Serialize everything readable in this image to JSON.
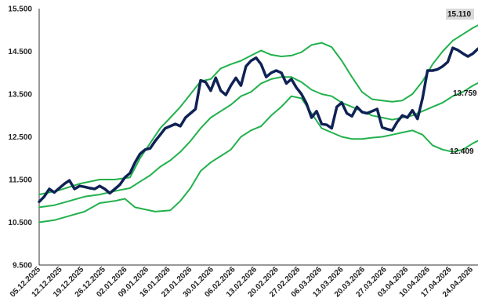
{
  "chart_data": {
    "type": "line",
    "title": "",
    "xlabel": "",
    "ylabel": "",
    "ylim": [
      9500,
      15500
    ],
    "y_ticks": [
      9500,
      10500,
      11500,
      12500,
      13500,
      14500,
      15500
    ],
    "y_tick_labels": [
      "9.500",
      "10.500",
      "11.500",
      "12.500",
      "13.500",
      "14.500",
      "15.500"
    ],
    "x_tick_labels": [
      "05.12.2025",
      "12.12.2025",
      "19.12.2025",
      "26.12.2025",
      "02.01.2026",
      "09.01.2026",
      "16.01.2026",
      "23.01.2026",
      "30.01.2026",
      "06.02.2026",
      "13.02.2026",
      "20.02.2026",
      "27.02.2026",
      "06.03.2026",
      "13.03.2026",
      "20.03.2026",
      "27.03.2026",
      "03.04.2026",
      "10.04.2026",
      "17.04.2026",
      "24.04.2026"
    ],
    "grid": false,
    "legend": "none",
    "end_labels": [
      {
        "text": "15.110",
        "value": 15110,
        "series": "upper_band"
      },
      {
        "text": "13.759",
        "value": 13759,
        "series": "middle_band"
      },
      {
        "text": "12.409",
        "value": 12409,
        "series": "lower_band"
      }
    ],
    "colors": {
      "price": "#0f2255",
      "bands": "#22b14c",
      "label_bg": "#d9d9d9"
    },
    "series": [
      {
        "key": "price",
        "color": "#0f2255",
        "width": 3.5,
        "values": [
          [
            0,
            10980
          ],
          [
            1,
            11100
          ],
          [
            2,
            11280
          ],
          [
            3,
            11200
          ],
          [
            4,
            11300
          ],
          [
            5,
            11400
          ],
          [
            6,
            11480
          ],
          [
            7,
            11280
          ],
          [
            8,
            11350
          ],
          [
            9,
            11330
          ],
          [
            10,
            11300
          ],
          [
            11,
            11280
          ],
          [
            12,
            11350
          ],
          [
            13,
            11280
          ],
          [
            14,
            11180
          ],
          [
            15,
            11280
          ],
          [
            16,
            11380
          ],
          [
            17,
            11550
          ],
          [
            18,
            11650
          ],
          [
            19,
            11900
          ],
          [
            20,
            12100
          ],
          [
            21,
            12200
          ],
          [
            22,
            12230
          ],
          [
            23,
            12400
          ],
          [
            24,
            12550
          ],
          [
            25,
            12700
          ],
          [
            26,
            12750
          ],
          [
            27,
            12800
          ],
          [
            28,
            12750
          ],
          [
            29,
            12950
          ],
          [
            30,
            13050
          ],
          [
            31,
            13150
          ],
          [
            32,
            13820
          ],
          [
            33,
            13780
          ],
          [
            34,
            13580
          ],
          [
            35,
            13880
          ],
          [
            36,
            13580
          ],
          [
            37,
            13480
          ],
          [
            38,
            13700
          ],
          [
            39,
            13880
          ],
          [
            40,
            13700
          ],
          [
            41,
            14150
          ],
          [
            42,
            14280
          ],
          [
            43,
            14350
          ],
          [
            44,
            14200
          ],
          [
            45,
            13900
          ],
          [
            46,
            14000
          ],
          [
            47,
            14050
          ],
          [
            48,
            14000
          ],
          [
            49,
            13750
          ],
          [
            50,
            13850
          ],
          [
            51,
            13650
          ],
          [
            52,
            13500
          ],
          [
            53,
            13280
          ],
          [
            54,
            12950
          ],
          [
            55,
            13100
          ],
          [
            56,
            12800
          ],
          [
            57,
            12780
          ],
          [
            58,
            12700
          ],
          [
            59,
            13200
          ],
          [
            60,
            13300
          ],
          [
            61,
            13050
          ],
          [
            62,
            12980
          ],
          [
            63,
            13200
          ],
          [
            64,
            13080
          ],
          [
            65,
            13050
          ],
          [
            66,
            13100
          ],
          [
            67,
            13150
          ],
          [
            68,
            12720
          ],
          [
            69,
            12680
          ],
          [
            70,
            12650
          ],
          [
            71,
            12850
          ],
          [
            72,
            13000
          ],
          [
            73,
            12950
          ],
          [
            74,
            13120
          ],
          [
            75,
            12920
          ],
          [
            76,
            13400
          ],
          [
            77,
            14050
          ],
          [
            78,
            14050
          ],
          [
            79,
            14080
          ],
          [
            80,
            14150
          ],
          [
            81,
            14250
          ],
          [
            82,
            14580
          ],
          [
            83,
            14530
          ],
          [
            84,
            14450
          ],
          [
            85,
            14380
          ],
          [
            86,
            14450
          ],
          [
            87,
            14560
          ]
        ]
      },
      {
        "key": "upper_band",
        "color": "#22b14c",
        "width": 2,
        "values": [
          [
            0,
            11150
          ],
          [
            4,
            11250
          ],
          [
            8,
            11400
          ],
          [
            12,
            11500
          ],
          [
            15,
            11500
          ],
          [
            18,
            11550
          ],
          [
            20,
            12000
          ],
          [
            22,
            12350
          ],
          [
            24,
            12700
          ],
          [
            26,
            12950
          ],
          [
            28,
            13200
          ],
          [
            30,
            13500
          ],
          [
            32,
            13800
          ],
          [
            34,
            13850
          ],
          [
            36,
            14100
          ],
          [
            38,
            14200
          ],
          [
            40,
            14280
          ],
          [
            42,
            14400
          ],
          [
            44,
            14520
          ],
          [
            46,
            14420
          ],
          [
            48,
            14380
          ],
          [
            50,
            14400
          ],
          [
            52,
            14480
          ],
          [
            54,
            14650
          ],
          [
            56,
            14700
          ],
          [
            58,
            14600
          ],
          [
            60,
            14280
          ],
          [
            62,
            13900
          ],
          [
            64,
            13550
          ],
          [
            66,
            13380
          ],
          [
            68,
            13350
          ],
          [
            70,
            13320
          ],
          [
            72,
            13350
          ],
          [
            74,
            13500
          ],
          [
            76,
            13800
          ],
          [
            78,
            14200
          ],
          [
            80,
            14500
          ],
          [
            82,
            14750
          ],
          [
            84,
            14900
          ],
          [
            86,
            15050
          ],
          [
            87,
            15110
          ]
        ]
      },
      {
        "key": "middle_band",
        "color": "#22b14c",
        "width": 2,
        "values": [
          [
            0,
            10850
          ],
          [
            3,
            10900
          ],
          [
            6,
            11000
          ],
          [
            9,
            11100
          ],
          [
            12,
            11150
          ],
          [
            15,
            11230
          ],
          [
            18,
            11300
          ],
          [
            20,
            11450
          ],
          [
            22,
            11600
          ],
          [
            24,
            11800
          ],
          [
            26,
            11950
          ],
          [
            28,
            12150
          ],
          [
            30,
            12400
          ],
          [
            32,
            12700
          ],
          [
            34,
            12950
          ],
          [
            36,
            13100
          ],
          [
            38,
            13250
          ],
          [
            40,
            13450
          ],
          [
            42,
            13550
          ],
          [
            44,
            13750
          ],
          [
            46,
            13850
          ],
          [
            48,
            13900
          ],
          [
            50,
            13900
          ],
          [
            52,
            13780
          ],
          [
            54,
            13600
          ],
          [
            56,
            13500
          ],
          [
            58,
            13450
          ],
          [
            60,
            13300
          ],
          [
            62,
            13200
          ],
          [
            64,
            13100
          ],
          [
            66,
            13000
          ],
          [
            68,
            12950
          ],
          [
            70,
            12900
          ],
          [
            72,
            12950
          ],
          [
            74,
            13000
          ],
          [
            76,
            13100
          ],
          [
            78,
            13200
          ],
          [
            80,
            13300
          ],
          [
            82,
            13450
          ],
          [
            84,
            13550
          ],
          [
            86,
            13700
          ],
          [
            87,
            13759
          ]
        ]
      },
      {
        "key": "lower_band",
        "color": "#22b14c",
        "width": 2,
        "values": [
          [
            0,
            10500
          ],
          [
            3,
            10550
          ],
          [
            6,
            10650
          ],
          [
            9,
            10750
          ],
          [
            12,
            10950
          ],
          [
            15,
            11000
          ],
          [
            17,
            11050
          ],
          [
            19,
            10850
          ],
          [
            21,
            10800
          ],
          [
            23,
            10750
          ],
          [
            26,
            10780
          ],
          [
            28,
            11000
          ],
          [
            30,
            11300
          ],
          [
            32,
            11700
          ],
          [
            34,
            11900
          ],
          [
            36,
            12050
          ],
          [
            38,
            12200
          ],
          [
            40,
            12500
          ],
          [
            42,
            12650
          ],
          [
            44,
            12750
          ],
          [
            46,
            13000
          ],
          [
            48,
            13200
          ],
          [
            50,
            13450
          ],
          [
            52,
            13400
          ],
          [
            54,
            13050
          ],
          [
            56,
            12700
          ],
          [
            58,
            12600
          ],
          [
            60,
            12500
          ],
          [
            62,
            12450
          ],
          [
            64,
            12450
          ],
          [
            66,
            12480
          ],
          [
            68,
            12500
          ],
          [
            70,
            12550
          ],
          [
            72,
            12600
          ],
          [
            74,
            12650
          ],
          [
            76,
            12550
          ],
          [
            78,
            12300
          ],
          [
            80,
            12200
          ],
          [
            82,
            12150
          ],
          [
            84,
            12200
          ],
          [
            86,
            12350
          ],
          [
            87,
            12409
          ]
        ]
      }
    ]
  }
}
